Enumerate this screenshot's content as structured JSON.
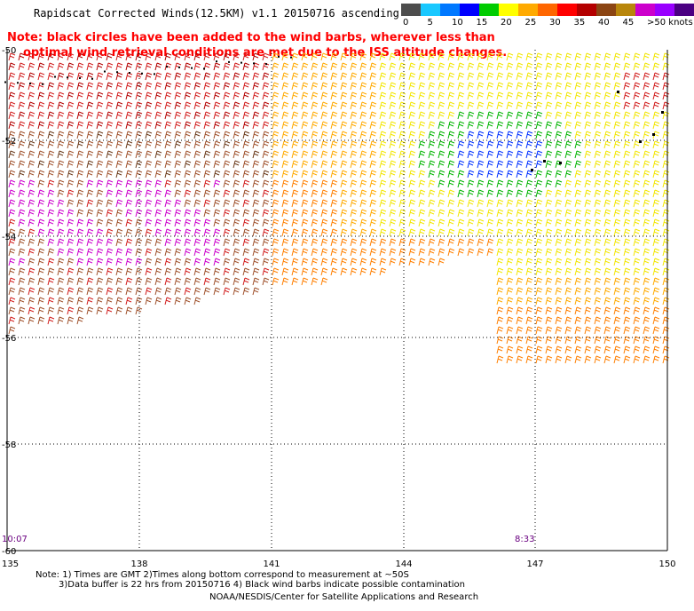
{
  "title": "Rapidscat Corrected Winds(12.5KM) v1.1 20150716 ascending",
  "note": {
    "line1": "Note: black circles have been added to the wind barbs, wherever less than",
    "line2": "optimal wind retrieval conditions are met due to the ISS altitude changes."
  },
  "legend": {
    "colors": [
      "#4d4d4d",
      "#19c8ff",
      "#0078ff",
      "#0000ff",
      "#00cc00",
      "#ffff00",
      "#ffaa00",
      "#ff6600",
      "#ff0000",
      "#b40000",
      "#8b4513",
      "#b8860b",
      "#cc00cc",
      "#9900ff",
      "#4b0082"
    ],
    "labels": [
      "0",
      "5",
      "10",
      "15",
      "20",
      "25",
      "30",
      "35",
      "40",
      "45",
      ">50 knots"
    ],
    "units": "knots"
  },
  "axes": {
    "lat_labels": [
      "-50",
      "-52",
      "-54",
      "-56",
      "-58",
      "-60"
    ],
    "lon_labels": [
      "135",
      "138",
      "141",
      "144",
      "147",
      "150"
    ]
  },
  "times": {
    "left": "10:07",
    "right": "8:33"
  },
  "footer": {
    "line1": "Note: 1) Times are GMT 2)Times along bottom correspond to measurement at ~50S",
    "line2": "3)Data buffer is 22 hrs from 20150716 4) Black wind barbs indicate possible contamination",
    "line3": "NOAA/NESDIS/Center for Satellite Applications and Research"
  }
}
